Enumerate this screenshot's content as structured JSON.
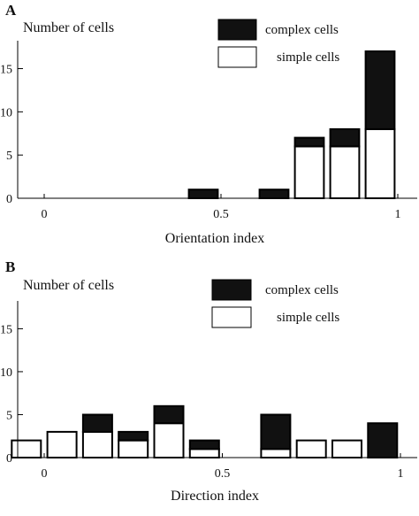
{
  "chart_data": [
    {
      "type": "bar",
      "stacked": true,
      "panel": "A",
      "ylabel": "Number of cells",
      "xlabel": "Orientation index",
      "ylim": [
        0,
        17
      ],
      "yticks": [
        0,
        5,
        10,
        15
      ],
      "xticks": [
        0,
        0.5,
        1
      ],
      "xlim": [
        -0.1,
        1.05
      ],
      "bin_width": 0.1,
      "bins": [
        0.05,
        0.15,
        0.25,
        0.35,
        0.45,
        0.55,
        0.65,
        0.75,
        0.85,
        0.95
      ],
      "series": [
        {
          "name": "simple cells",
          "color": "#ffffff",
          "values": [
            0,
            0,
            0,
            0,
            0,
            0,
            0,
            6,
            6,
            8
          ]
        },
        {
          "name": "complex cells",
          "color": "#111111",
          "values": [
            0,
            0,
            0,
            0,
            1,
            0,
            1,
            1,
            2,
            9
          ]
        }
      ],
      "legend": "top-right",
      "grid": false
    },
    {
      "type": "bar",
      "stacked": true,
      "panel": "B",
      "ylabel": "Number of cells",
      "xlabel": "Direction index",
      "ylim": [
        0,
        17
      ],
      "yticks": [
        0,
        5,
        10,
        15
      ],
      "xticks": [
        0,
        0.5,
        1
      ],
      "xlim": [
        -0.1,
        1.05
      ],
      "bin_width": 0.1,
      "bins": [
        -0.05,
        0.05,
        0.15,
        0.25,
        0.35,
        0.45,
        0.55,
        0.65,
        0.75,
        0.85,
        0.95
      ],
      "series": [
        {
          "name": "simple cells",
          "color": "#ffffff",
          "values": [
            2,
            3,
            3,
            2,
            4,
            1,
            0,
            1,
            2,
            2,
            0
          ]
        },
        {
          "name": "complex cells",
          "color": "#111111",
          "values": [
            0,
            0,
            2,
            1,
            2,
            1,
            0,
            4,
            0,
            0,
            4
          ]
        }
      ],
      "legend": "top-right",
      "grid": false
    }
  ]
}
